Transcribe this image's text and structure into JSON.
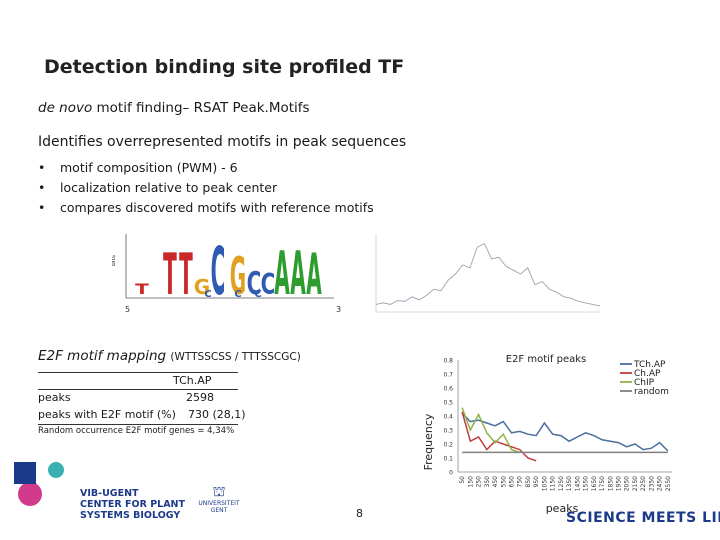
{
  "slide": {
    "title": "Detection binding site profiled TF",
    "subtitle_italic": "de novo",
    "subtitle_rest": " motif finding– RSAT Peak.Motifs",
    "lead": "Identifies overrepresented motifs in peak sequences",
    "bullets": [
      "motif composition (PWM) - 6",
      "localization relative to peak center",
      "compares discovered motifs with reference motifs"
    ],
    "mapping_main": "E2F motif mapping ",
    "mapping_seq": "(WTTSSCSS / TTTSSCGC)",
    "page_number": "8"
  },
  "logo_motif": {
    "letters": [
      "T",
      "T",
      "T",
      "G",
      "C",
      "G",
      "C",
      "C",
      "A",
      "A",
      "A"
    ],
    "sub_letters": [
      "C",
      "C",
      "C"
    ],
    "left_label": "5",
    "right_label": "3",
    "axis_label": "bits"
  },
  "table": {
    "col_header": "TCh.AP",
    "rows": [
      {
        "label": "peaks",
        "value": "2598"
      },
      {
        "label": "peaks with E2F motif (%)",
        "value": "730 (28,1)"
      }
    ]
  },
  "random_text": "Random occurrence E2F motif genes = 4,34%",
  "logos": {
    "vib_line1": "VIB-UGENT",
    "vib_line2": "CENTER FOR PLANT",
    "vib_line3": "SYSTEMS BIOLOGY",
    "ugent_line1": "UNIVERSITEIT",
    "ugent_line2": "GENT",
    "tagline": "SCIENCE MEETS LIFE"
  },
  "colors": {
    "tchap": "#4a6e9e",
    "chap": "#c03a3a",
    "chip": "#8fb24a",
    "random": "#7f7f7f",
    "logo_magenta": "#d23a8c",
    "logo_teal": "#3ab0b0"
  },
  "chart_data": {
    "type": "line",
    "title": "E2F motif peaks",
    "xlabel": "peaks",
    "ylabel": "Frequency",
    "ylim": [
      0,
      0.8
    ],
    "yticks": [
      "0",
      "0.1",
      "0.2",
      "0.3",
      "0.4",
      "0.5",
      "0.6",
      "0.7",
      "0.8"
    ],
    "xticks": [
      "50",
      "150",
      "250",
      "350",
      "450",
      "550",
      "650",
      "750",
      "850",
      "950",
      "1050",
      "1150",
      "1250",
      "1350",
      "1450",
      "1550",
      "1650",
      "1750",
      "1850",
      "1950",
      "2050",
      "2150",
      "2250",
      "2350",
      "2450",
      "2550"
    ],
    "legend_position": "top-right",
    "series": [
      {
        "name": "TCh.AP",
        "values": [
          0.42,
          0.36,
          0.37,
          0.35,
          0.33,
          0.36,
          0.28,
          0.29,
          0.27,
          0.26,
          0.35,
          0.27,
          0.26,
          0.22,
          0.25,
          0.28,
          0.26,
          0.23,
          0.22,
          0.21,
          0.18,
          0.2,
          0.16,
          0.17,
          0.21,
          0.15
        ]
      },
      {
        "name": "Ch.AP",
        "values": [
          0.43,
          0.22,
          0.25,
          0.16,
          0.22,
          0.2,
          0.18,
          0.16,
          0.1,
          0.08
        ]
      },
      {
        "name": "ChIP",
        "values": [
          0.46,
          0.3,
          0.41,
          0.28,
          0.21,
          0.27,
          0.16,
          0.14
        ]
      },
      {
        "name": "random",
        "values": [
          0.14,
          0.14,
          0.14,
          0.14,
          0.14,
          0.14,
          0.14,
          0.14,
          0.14,
          0.14,
          0.14,
          0.14,
          0.14,
          0.14,
          0.14,
          0.14,
          0.14,
          0.14,
          0.14,
          0.14,
          0.14,
          0.14,
          0.14,
          0.14,
          0.14,
          0.14
        ]
      }
    ]
  }
}
